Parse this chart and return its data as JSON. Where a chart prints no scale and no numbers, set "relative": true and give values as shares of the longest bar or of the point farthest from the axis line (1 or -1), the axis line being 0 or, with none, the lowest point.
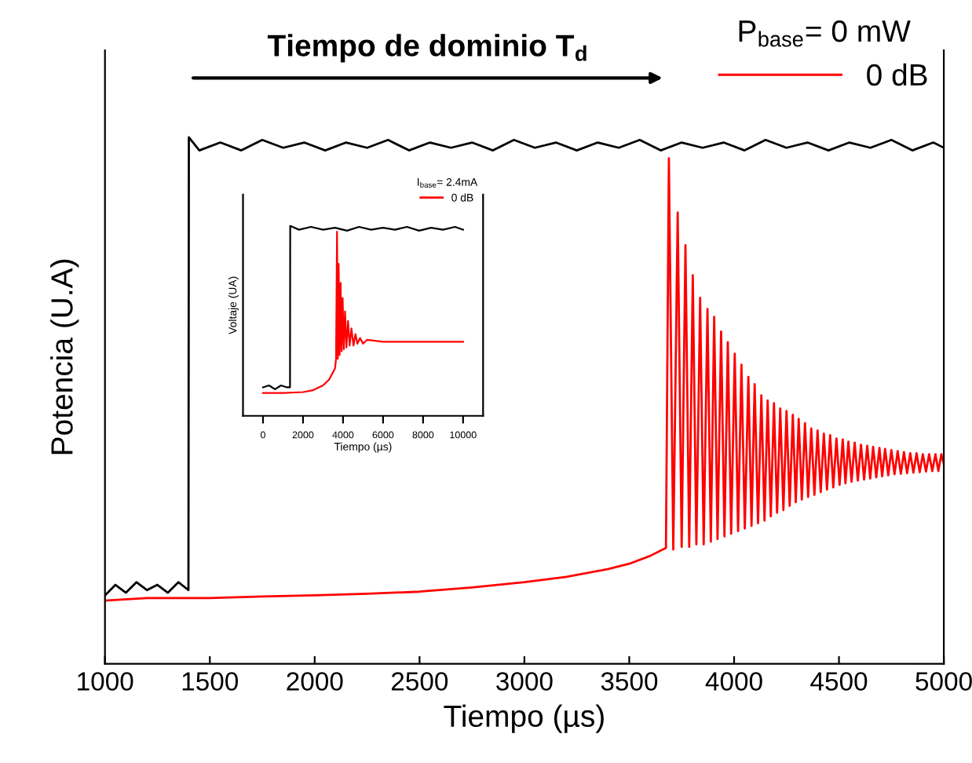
{
  "chart_data": [
    {
      "type": "line",
      "xlabel": "Tiempo (µs)",
      "ylabel": "Potencia (U.A)",
      "relative": true,
      "xlim": [
        1000,
        5000
      ],
      "xticks": [
        1000,
        1500,
        2000,
        2500,
        3000,
        3500,
        4000,
        4500,
        5000
      ],
      "legend": "top right",
      "legend_title": "P$_{base}$= 0 mW",
      "grid": false,
      "annotations": [
        "Tiempo de dominio T$_{d}$"
      ],
      "series": [
        {
          "color": "#000000",
          "x": [
            1000,
            1050,
            1100,
            1150,
            1200,
            1250,
            1300,
            1350,
            1398,
            1400,
            1450,
            1550,
            1650,
            1750,
            1850,
            1950,
            2050,
            2150,
            2250,
            2350,
            2450,
            2550,
            2650,
            2750,
            2850,
            2950,
            3050,
            3150,
            3250,
            3350,
            3450,
            3550,
            3650,
            3750,
            3850,
            3950,
            4050,
            4150,
            4250,
            4350,
            4450,
            4550,
            4650,
            4750,
            4850,
            4950,
            5000
          ],
          "values": [
            0.13,
            0.15,
            0.135,
            0.155,
            0.14,
            0.15,
            0.135,
            0.155,
            0.14,
            1.0,
            0.975,
            0.99,
            0.975,
            0.995,
            0.98,
            0.99,
            0.975,
            0.99,
            0.98,
            0.995,
            0.975,
            0.99,
            0.98,
            0.99,
            0.975,
            0.995,
            0.98,
            0.99,
            0.975,
            0.99,
            0.98,
            0.995,
            0.975,
            0.99,
            0.98,
            0.99,
            0.975,
            0.995,
            0.98,
            0.99,
            0.975,
            0.99,
            0.98,
            0.995,
            0.975,
            0.99,
            0.98
          ]
        },
        {
          "name": "0 dB",
          "color": "#ff0000",
          "x": [
            1000,
            1200,
            1400,
            1500,
            1750,
            2000,
            2250,
            2500,
            2750,
            3000,
            3200,
            3400,
            3500,
            3600,
            3675,
            3689,
            3710,
            3731,
            3750,
            3768,
            3786,
            3803,
            3820,
            3838,
            3855,
            3873,
            3889,
            3905,
            3921,
            3938,
            3954,
            3970,
            3986,
            4003,
            4019,
            4035,
            4051,
            4068,
            4083,
            4098,
            4114,
            4130,
            4145,
            4160,
            4175,
            4190,
            4205,
            4220,
            4235,
            4250,
            4265,
            4280,
            4294,
            4308,
            4323,
            4338,
            4353,
            4368,
            4383,
            4398,
            4413,
            4428,
            4443,
            4458,
            4473,
            4488,
            4503,
            4518,
            4531,
            4545,
            4560,
            4575,
            4590,
            4605,
            4620,
            4635,
            4649,
            4663,
            4678,
            4693,
            4706,
            4720,
            4735,
            4750,
            4765,
            4780,
            4795,
            4810,
            4825,
            4840,
            4855,
            4870,
            4885,
            4900,
            4915,
            4930,
            4945,
            4960,
            4974,
            4988,
            5000
          ],
          "values": [
            0.12,
            0.125,
            0.125,
            0.125,
            0.128,
            0.13,
            0.133,
            0.137,
            0.145,
            0.155,
            0.165,
            0.18,
            0.19,
            0.205,
            0.22,
            0.96,
            0.217,
            0.857,
            0.222,
            0.795,
            0.222,
            0.738,
            0.227,
            0.695,
            0.227,
            0.674,
            0.232,
            0.659,
            0.237,
            0.631,
            0.242,
            0.611,
            0.247,
            0.589,
            0.252,
            0.568,
            0.257,
            0.545,
            0.262,
            0.531,
            0.267,
            0.51,
            0.272,
            0.5,
            0.28,
            0.495,
            0.287,
            0.485,
            0.292,
            0.48,
            0.3,
            0.473,
            0.307,
            0.465,
            0.312,
            0.457,
            0.317,
            0.447,
            0.321,
            0.443,
            0.326,
            0.437,
            0.331,
            0.434,
            0.335,
            0.428,
            0.34,
            0.426,
            0.343,
            0.422,
            0.346,
            0.42,
            0.348,
            0.416,
            0.35,
            0.414,
            0.352,
            0.412,
            0.354,
            0.41,
            0.356,
            0.408,
            0.358,
            0.406,
            0.36,
            0.404,
            0.361,
            0.402,
            0.362,
            0.4,
            0.363,
            0.4,
            0.364,
            0.398,
            0.365,
            0.398,
            0.366,
            0.398,
            0.366,
            0.398,
            0.38
          ]
        }
      ]
    },
    {
      "type": "line",
      "xlabel": "Tiempo (µs)",
      "ylabel": "Voltaje (UA)",
      "relative": true,
      "xlim": [
        -1000,
        11000
      ],
      "xticks": [
        0,
        2000,
        4000,
        6000,
        8000,
        10000
      ],
      "legend": "top right",
      "legend_title": "I$_{base}$= 2.4mA",
      "grid": false,
      "series": [
        {
          "color": "#000000",
          "x": [
            0,
            300,
            600,
            900,
            1200,
            1350,
            1360,
            1800,
            2400,
            3000,
            3600,
            4200,
            4800,
            5400,
            6000,
            6600,
            7200,
            7800,
            8400,
            9000,
            9600,
            10000
          ],
          "values": [
            0.15,
            0.16,
            0.14,
            0.16,
            0.15,
            0.15,
            1.0,
            0.98,
            0.995,
            0.98,
            0.99,
            0.975,
            0.995,
            0.98,
            0.99,
            0.98,
            0.995,
            0.975,
            0.99,
            0.98,
            0.995,
            0.98
          ]
        },
        {
          "name": "0 dB",
          "color": "#ff0000",
          "x": [
            0,
            1000,
            2000,
            2500,
            3000,
            3300,
            3600,
            3650,
            3700,
            3740,
            3780,
            3830,
            3880,
            3930,
            3980,
            4040,
            4100,
            4170,
            4250,
            4330,
            4420,
            4520,
            4620,
            4720,
            4850,
            5000,
            5200,
            6000,
            7000,
            8000,
            9000,
            10000
          ],
          "values": [
            0.12,
            0.12,
            0.125,
            0.135,
            0.16,
            0.19,
            0.25,
            0.3,
            0.97,
            0.3,
            0.8,
            0.32,
            0.7,
            0.34,
            0.62,
            0.35,
            0.55,
            0.36,
            0.5,
            0.37,
            0.46,
            0.37,
            0.43,
            0.38,
            0.41,
            0.38,
            0.4,
            0.39,
            0.39,
            0.39,
            0.39,
            0.39
          ]
        }
      ]
    }
  ]
}
